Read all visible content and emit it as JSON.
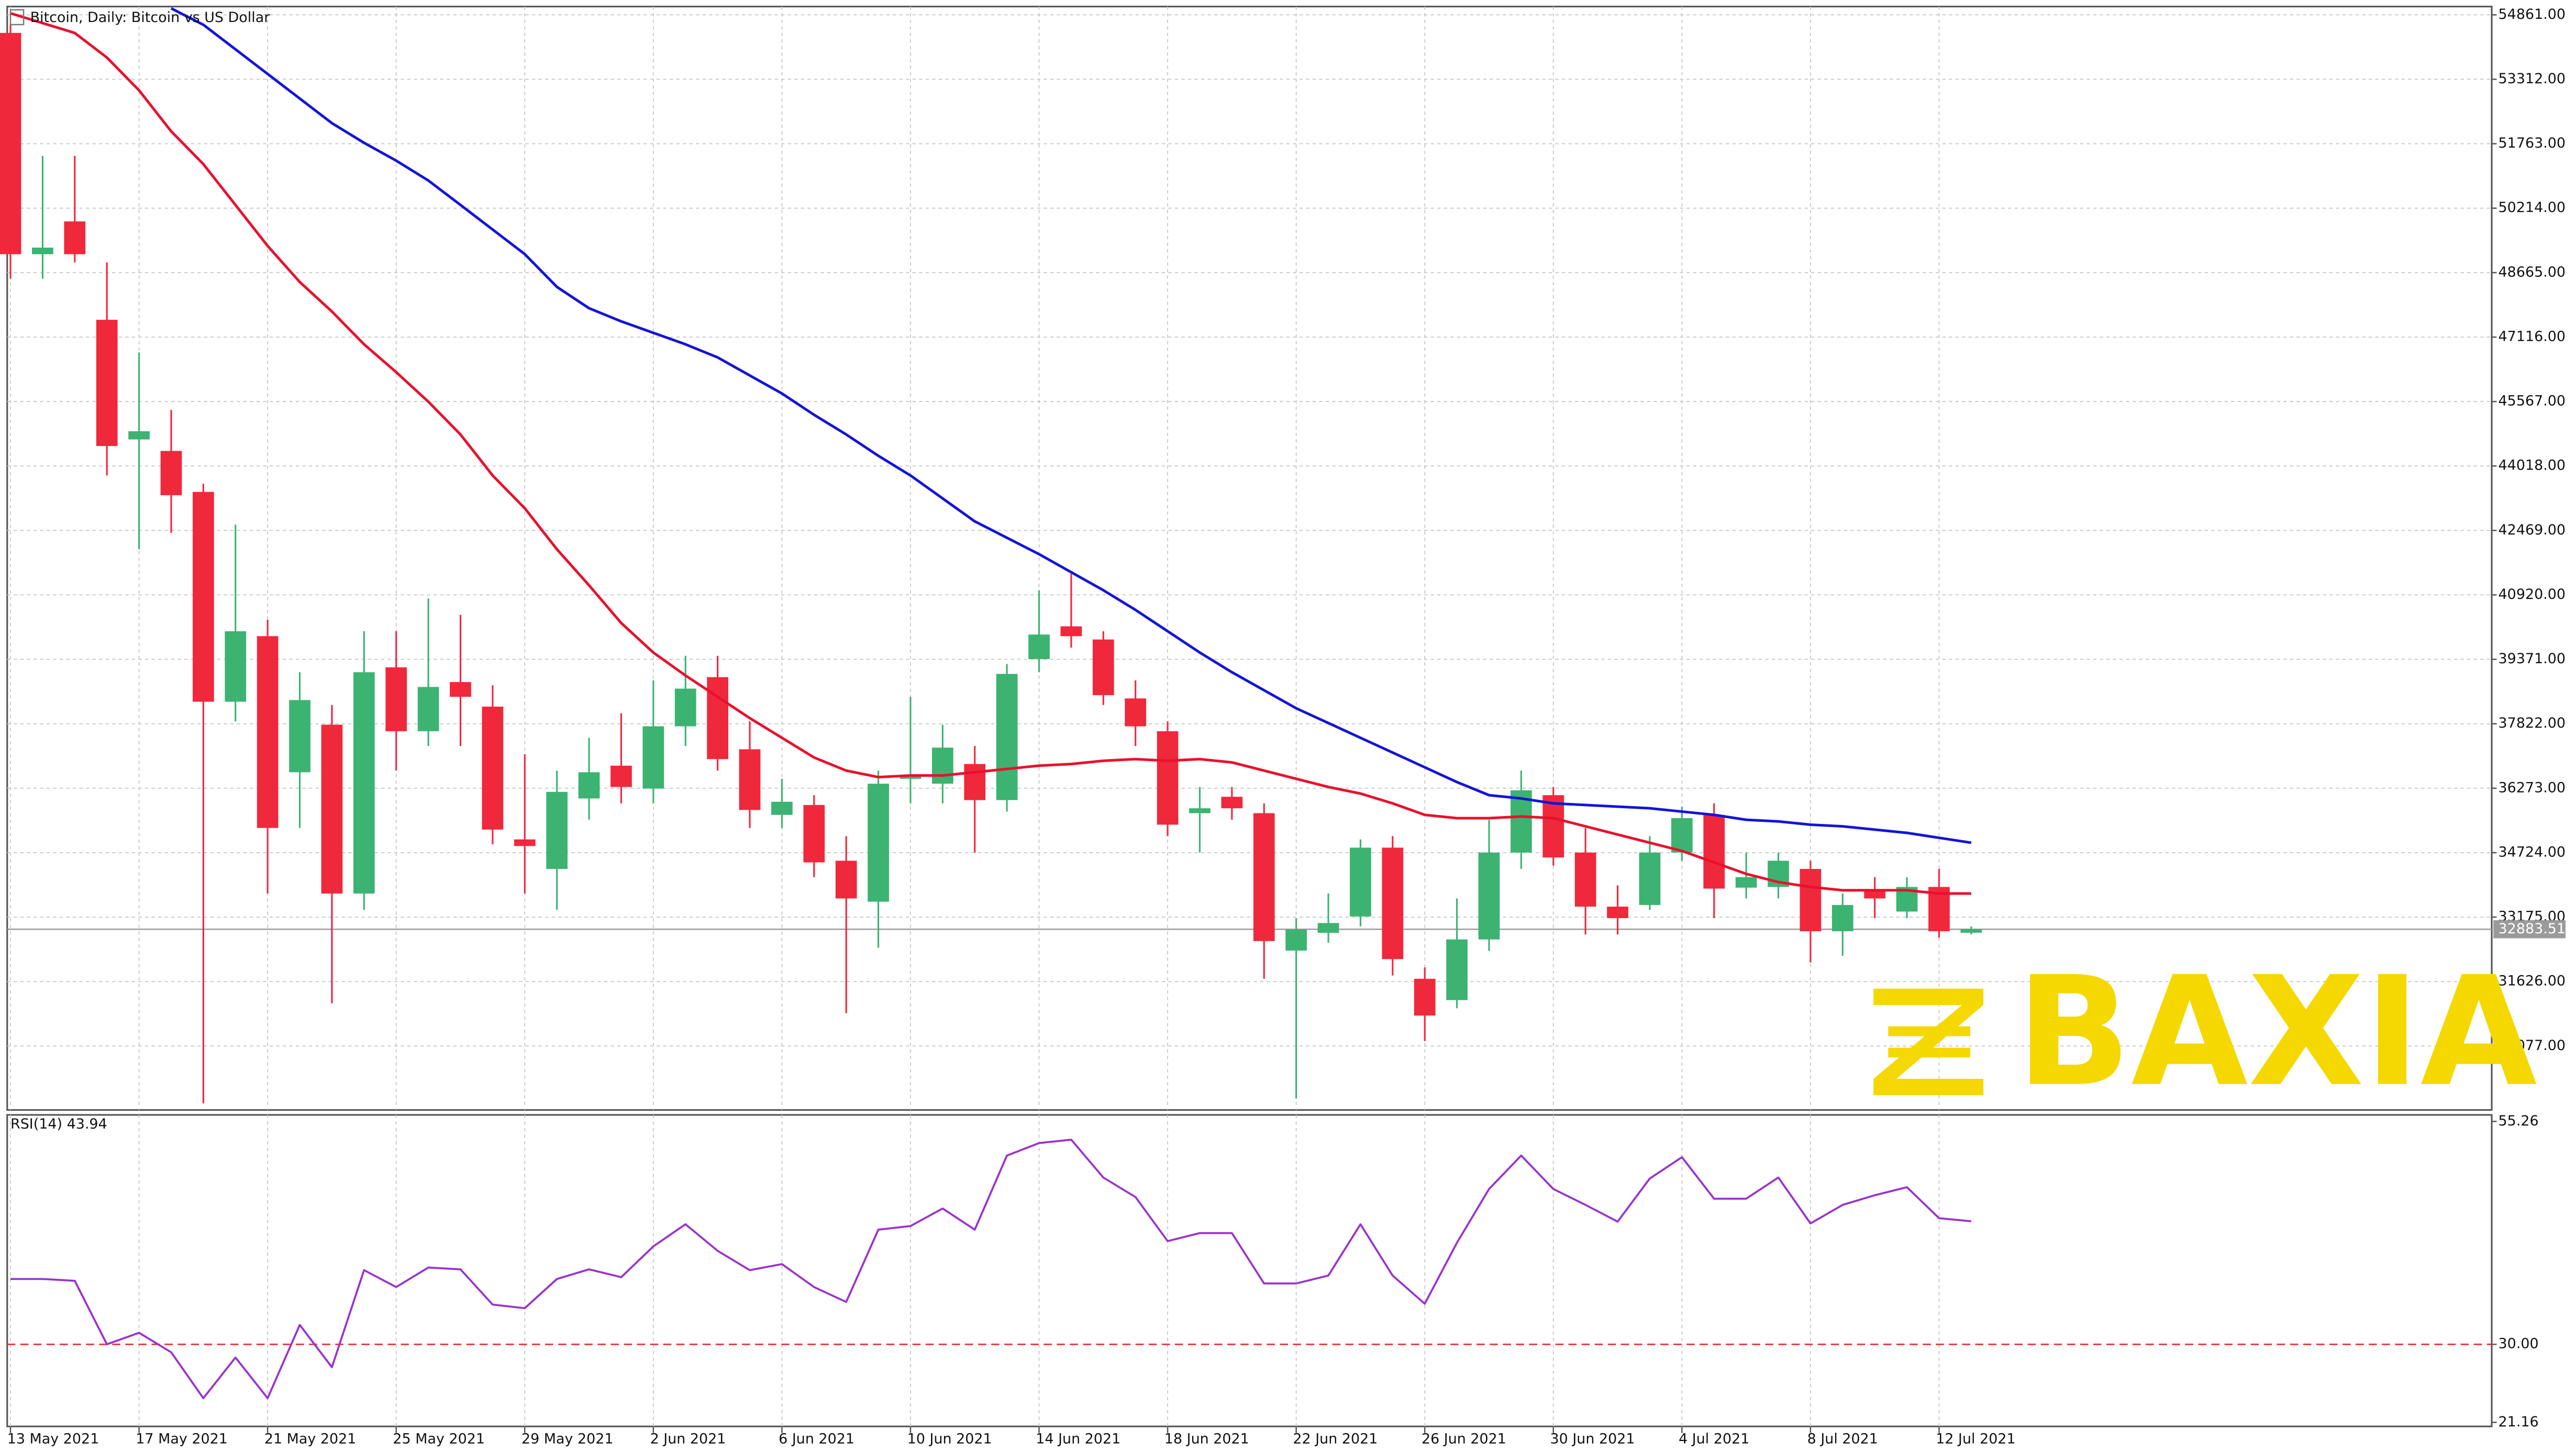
{
  "chart_data": [
    {
      "type": "candlestick",
      "title": "Bitcoin, Daily:  Bitcoin vs US Dollar",
      "categories": [
        "13 May 2021",
        null,
        null,
        null,
        "17 May 2021",
        null,
        null,
        null,
        "21 May 2021",
        null,
        null,
        null,
        "25 May 2021",
        null,
        null,
        null,
        "29 May 2021",
        null,
        null,
        null,
        "2 Jun 2021",
        null,
        null,
        null,
        "6 Jun 2021",
        null,
        null,
        null,
        "10 Jun 2021",
        null,
        null,
        null,
        "14 Jun 2021",
        null,
        null,
        null,
        "18 Jun 2021",
        null,
        null,
        null,
        "22 Jun 2021",
        null,
        null,
        null,
        "26 Jun 2021",
        null,
        null,
        null,
        "30 Jun 2021",
        null,
        null,
        null,
        "4 Jul 2021",
        null,
        null,
        null,
        "8 Jul 2021",
        null,
        null,
        null,
        "12 Jul 2021",
        null
      ],
      "open": [
        54427,
        49108,
        49896,
        47532,
        44656,
        44380,
        43395,
        38352,
        39928,
        36657,
        37800,
        33742,
        39179,
        37643,
        38825,
        38234,
        35043,
        34333,
        36027,
        36815,
        36264,
        37761,
        38943,
        37209,
        35633,
        35870,
        34530,
        33546,
        36500,
        36382,
        36855,
        35988,
        39376,
        40164,
        39848,
        38431,
        37643,
        35673,
        36067,
        35673,
        32371,
        32797,
        33191,
        34845,
        31693,
        31181,
        32639,
        34727,
        36106,
        34727,
        33427,
        33467,
        34727,
        35633,
        33884,
        33900,
        34333,
        32836,
        33821,
        33309,
        33900,
        32800
      ],
      "high": [
        54624,
        51472,
        51472,
        48911,
        46744,
        45365,
        43592,
        42607,
        40322,
        39061,
        38273,
        40046,
        40046,
        40834,
        40440,
        38746,
        37091,
        36697,
        37485,
        38076,
        38864,
        39455,
        39455,
        37879,
        36500,
        36106,
        35121,
        36697,
        38470,
        37800,
        37288,
        39258,
        41031,
        41425,
        40046,
        38864,
        37879,
        36303,
        36303,
        35909,
        33151,
        33742,
        35042,
        35121,
        31969,
        33624,
        35515,
        36697,
        36303,
        35318,
        33939,
        35121,
        35830,
        35909,
        34727,
        34727,
        34530,
        33742,
        34136,
        34136,
        34333,
        32954
      ],
      "low": [
        48517,
        48517,
        48911,
        43789,
        42016,
        42410,
        28700,
        37879,
        33742,
        35318,
        31103,
        33349,
        36697,
        37288,
        37288,
        34924,
        33742,
        33349,
        35515,
        35909,
        35909,
        37288,
        36697,
        35318,
        35318,
        34136,
        30866,
        32442,
        35909,
        35909,
        34727,
        35712,
        39061,
        39652,
        38273,
        37288,
        35121,
        34727,
        35515,
        31693,
        28817,
        32560,
        32954,
        31772,
        30196,
        30984,
        32363,
        34333,
        34412,
        32757,
        32757,
        33349,
        34530,
        33151,
        33624,
        33624,
        32087,
        32245,
        33151,
        33151,
        32679,
        32757
      ],
      "close": [
        49108,
        49266,
        49108,
        44498,
        44853,
        43316,
        38352,
        40046,
        35318,
        38392,
        33742,
        39061,
        37643,
        38707,
        38470,
        35279,
        34884,
        36185,
        36657,
        36303,
        37761,
        38667,
        36973,
        35751,
        35948,
        34491,
        33624,
        36382,
        36600,
        37249,
        35988,
        39021,
        39967,
        39927,
        38510,
        37761,
        35397,
        35791,
        35791,
        32600,
        32876,
        33033,
        34845,
        32166,
        30809,
        32639,
        34727,
        36224,
        34609,
        33427,
        33151,
        34727,
        35555,
        33861,
        34136,
        34530,
        32836,
        33467,
        33624,
        33900,
        32836,
        32884
      ],
      "up_color": "#3cb371",
      "down_color": "#f0283c",
      "series": [
        {
          "color": "#e8112d",
          "values": [
            54900,
            54663,
            54427,
            53836,
            53048,
            52063,
            51275,
            50290,
            49305,
            48438,
            47729,
            46941,
            46271,
            45562,
            44774,
            43789,
            43001,
            42016,
            41149,
            40243,
            39534,
            38982,
            38470,
            37958,
            37485,
            37012,
            36697,
            36539,
            36579,
            36579,
            36658,
            36736,
            36815,
            36855,
            36933,
            36973,
            36933,
            36973,
            36894,
            36697,
            36500,
            36303,
            36145,
            35909,
            35633,
            35554,
            35554,
            35594,
            35554,
            35357,
            35160,
            34963,
            34766,
            34491,
            34215,
            34018,
            33900,
            33821,
            33821,
            33821,
            33742,
            33742
          ]
        },
        {
          "color": "#1414d8",
          "values": [
            null,
            null,
            null,
            null,
            null,
            55018,
            54624,
            54033,
            53442,
            52851,
            52260,
            51787,
            51354,
            50881,
            50290,
            49699,
            49108,
            48320,
            47808,
            47493,
            47217,
            46941,
            46626,
            46193,
            45759,
            45247,
            44774,
            44262,
            43789,
            43237,
            42686,
            42292,
            41898,
            41464,
            41031,
            40558,
            40046,
            39534,
            39061,
            38628,
            38194,
            37840,
            37485,
            37131,
            36776,
            36421,
            36106,
            36028,
            35909,
            35870,
            35830,
            35791,
            35712,
            35633,
            35515,
            35476,
            35397,
            35357,
            35279,
            35200,
            35082,
            34963
          ]
        }
      ],
      "ylim": [
        28540,
        55060
      ],
      "yticks": [
        {
          "value": 54861,
          "label": "54861.00"
        },
        {
          "value": 53312,
          "label": "53312.00"
        },
        {
          "value": 51763,
          "label": "51763.00"
        },
        {
          "value": 50214,
          "label": "50214.00"
        },
        {
          "value": 48665,
          "label": "48665.00"
        },
        {
          "value": 47116,
          "label": "47116.00"
        },
        {
          "value": 45567,
          "label": "45567.00"
        },
        {
          "value": 44018,
          "label": "44018.00"
        },
        {
          "value": 42469,
          "label": "42469.00"
        },
        {
          "value": 40920,
          "label": "40920.00"
        },
        {
          "value": 39371,
          "label": "39371.00"
        },
        {
          "value": 37822,
          "label": "37822.00"
        },
        {
          "value": 36273,
          "label": "36273.00"
        },
        {
          "value": 34724,
          "label": "34724.00"
        },
        {
          "value": 33175,
          "label": "33175.00"
        },
        {
          "value": 31626,
          "label": "31626.00"
        },
        {
          "value": 30077,
          "label": "30077.00"
        }
      ],
      "last_price": 32883.51,
      "grid": true
    },
    {
      "type": "line",
      "title": "RSI(14) 43.94",
      "color": "#9932cc",
      "values": [
        37.4,
        37.4,
        37.2,
        30.0,
        31.3,
        29.1,
        23.9,
        28.5,
        23.9,
        32.2,
        27.4,
        38.4,
        36.5,
        38.7,
        38.5,
        34.5,
        34.1,
        37.4,
        38.5,
        37.6,
        41.1,
        43.6,
        40.6,
        38.4,
        39.1,
        36.5,
        34.8,
        43.0,
        43.4,
        45.4,
        43.0,
        51.4,
        52.8,
        53.2,
        48.9,
        46.7,
        41.7,
        42.6,
        42.6,
        36.9,
        36.9,
        37.8,
        43.6,
        37.8,
        34.6,
        41.5,
        47.6,
        51.4,
        47.6,
        45.8,
        43.9,
        48.8,
        51.2,
        46.5,
        46.5,
        48.9,
        43.7,
        45.8,
        46.9,
        47.8,
        44.3,
        43.94
      ],
      "ylim": [
        20.7,
        56.0
      ],
      "yticks": [
        55.26,
        {
          "value": 30,
          "label": "30.00"
        },
        21.16
      ],
      "levels": [
        30
      ],
      "level_color": "#e83030"
    }
  ],
  "watermark": "BAXIA"
}
